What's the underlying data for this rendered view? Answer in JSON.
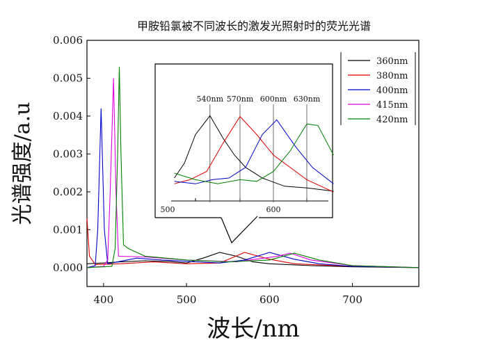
{
  "chart_data": {
    "type": "line",
    "title": "甲胺铅氯被不同波长的激发光照射时的荧光光谱",
    "xlabel": "波长/nm",
    "ylabel": "光谱强度/a.u",
    "xlim": [
      380,
      780
    ],
    "ylim": [
      -0.0005,
      0.006
    ],
    "xticks": [
      400,
      500,
      600,
      700
    ],
    "xtick_labels": [
      "400",
      "500",
      "600",
      "700"
    ],
    "yticks": [
      0,
      0.001,
      0.002,
      0.003,
      0.004,
      0.005,
      0.006
    ],
    "ytick_labels": [
      "0.000",
      "0.001",
      "0.002",
      "0.003",
      "0.004",
      "0.005",
      "0.006"
    ],
    "grid": false,
    "legend_position": "top-right",
    "series": [
      {
        "name": "360nm",
        "color": "#000000",
        "x": [
          380,
          400,
          420,
          450,
          480,
          500,
          520,
          540,
          560,
          580,
          600,
          650,
          700,
          780
        ],
        "y": [
          0.0001,
          0.00012,
          0.00015,
          0.00018,
          0.00016,
          0.00012,
          0.00025,
          0.0004,
          0.0003,
          0.00015,
          0.0001,
          5e-05,
          2e-05,
          0
        ]
      },
      {
        "name": "380nm",
        "color": "#e00000",
        "x": [
          380,
          383,
          390,
          420,
          460,
          500,
          540,
          570,
          600,
          630,
          700,
          780
        ],
        "y": [
          0.0013,
          0.0003,
          8e-05,
          0.0001,
          0.00015,
          0.0001,
          0.00012,
          0.0004,
          0.00022,
          0.0001,
          3e-05,
          0
        ]
      },
      {
        "name": "400nm",
        "color": "#0000cc",
        "x": [
          380,
          390,
          393,
          397,
          401,
          405,
          440,
          470,
          540,
          570,
          600,
          630,
          660,
          700,
          780
        ],
        "y": [
          0,
          5e-05,
          0.001,
          0.0042,
          0.001,
          0.0001,
          0.00025,
          0.0002,
          0.00012,
          0.0002,
          0.0004,
          0.00022,
          0.0001,
          3e-05,
          0
        ]
      },
      {
        "name": "415nm",
        "color": "#e000e0",
        "x": [
          380,
          400,
          405,
          408,
          412,
          415,
          418,
          450,
          500,
          560,
          610,
          625,
          650,
          700,
          780
        ],
        "y": [
          0,
          3e-05,
          0.0002,
          0.002,
          0.005,
          0.002,
          0.0003,
          0.00028,
          0.0002,
          0.00015,
          0.0003,
          0.00038,
          0.0002,
          5e-05,
          0
        ]
      },
      {
        "name": "420nm",
        "color": "#008000",
        "x": [
          380,
          410,
          414,
          417,
          419,
          421,
          424,
          430,
          450,
          500,
          550,
          600,
          630,
          660,
          700,
          780
        ],
        "y": [
          0,
          3e-05,
          0.0005,
          0.003,
          0.0053,
          0.003,
          0.0006,
          0.0005,
          0.0003,
          0.0002,
          0.00015,
          0.0002,
          0.00038,
          0.0002,
          5e-05,
          0
        ]
      }
    ],
    "inset": {
      "xlim": [
        500,
        655
      ],
      "xtick_labels": [
        "500",
        "600"
      ],
      "xticks": [
        500,
        600
      ],
      "peak_labels": [
        {
          "x": 543,
          "label": "540nm"
        },
        {
          "x": 570,
          "label": "570nm"
        },
        {
          "x": 600,
          "label": "600nm"
        },
        {
          "x": 630,
          "label": "630nm"
        }
      ],
      "series": [
        {
          "name": "360nm",
          "color": "#000000",
          "x": [
            511,
            520,
            530,
            543,
            555,
            565,
            575,
            590,
            610,
            630,
            654
          ],
          "y": [
            0.22,
            0.4,
            0.75,
            0.98,
            0.7,
            0.5,
            0.35,
            0.22,
            0.12,
            0.1,
            0.06
          ]
        },
        {
          "name": "380nm",
          "color": "#e00000",
          "x": [
            511,
            525,
            540,
            555,
            570,
            585,
            600,
            615,
            630,
            654
          ],
          "y": [
            0.15,
            0.2,
            0.3,
            0.65,
            0.97,
            0.75,
            0.5,
            0.35,
            0.2,
            0.05
          ]
        },
        {
          "name": "400nm",
          "color": "#0000cc",
          "x": [
            511,
            530,
            545,
            560,
            575,
            590,
            603,
            620,
            635,
            654
          ],
          "y": [
            0.18,
            0.15,
            0.2,
            0.22,
            0.35,
            0.75,
            0.93,
            0.6,
            0.35,
            0.15
          ]
        },
        {
          "name": "420nm",
          "color": "#008000",
          "x": [
            511,
            530,
            550,
            570,
            585,
            600,
            615,
            630,
            640,
            654
          ],
          "y": [
            0.28,
            0.2,
            0.15,
            0.2,
            0.18,
            0.3,
            0.55,
            0.88,
            0.86,
            0.5
          ]
        }
      ]
    }
  }
}
